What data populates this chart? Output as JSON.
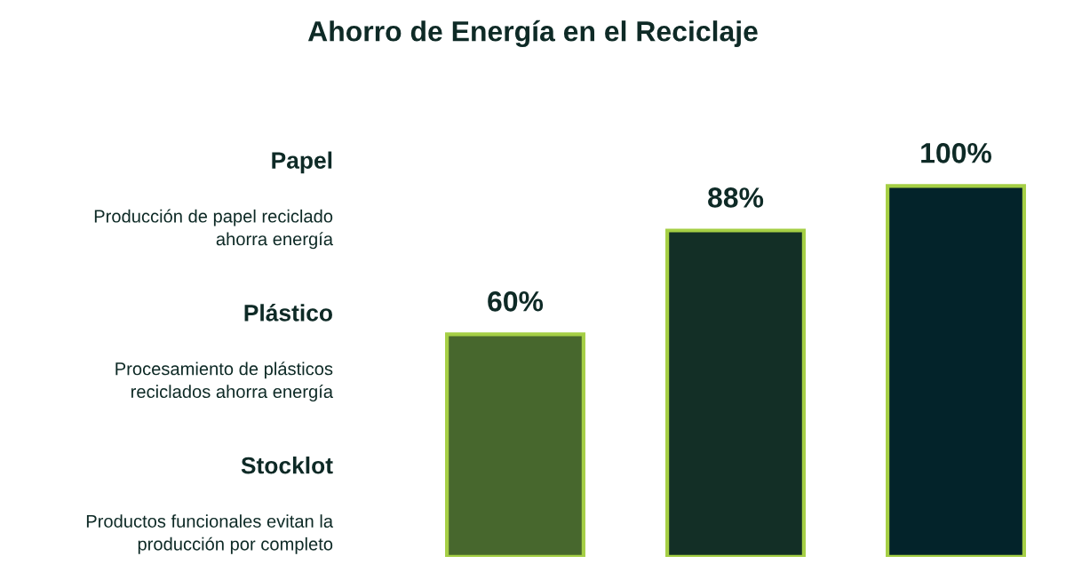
{
  "chart_data": {
    "type": "bar",
    "title": "Ahorro de Energía en el Reciclaje",
    "categories": [
      null,
      null,
      null
    ],
    "values": [
      60,
      88,
      100
    ],
    "colors": [
      "#47672d",
      "#132f26",
      "#03232a"
    ],
    "data_labels": true,
    "value_labels": [
      "60%",
      "88%",
      "100%"
    ],
    "annotations": [
      "Papel",
      "Producción de papel reciclado\nahorra energía",
      "Plástico",
      "Procesamiento de plásticos\nreciclados ahorra energía",
      "Stocklot",
      "Productos funcionales evitan la\nproducción por completo"
    ]
  }
}
